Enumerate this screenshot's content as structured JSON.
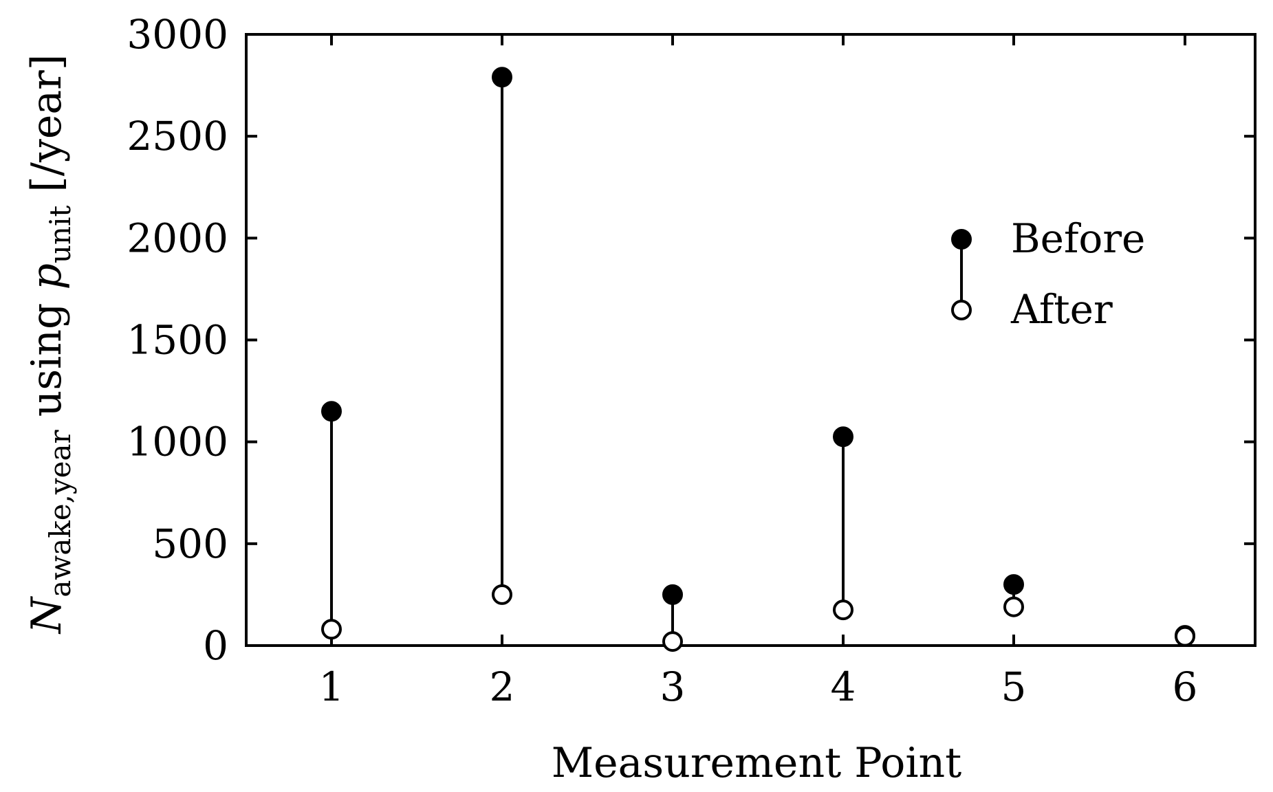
{
  "chart_data": {
    "type": "scatter",
    "title": "",
    "xlabel": "Measurement Point",
    "ylabel": {
      "n": "N",
      "n_sub": "awake,year",
      "using": " using ",
      "p": "p",
      "p_sub": "unit",
      "unit": " [/year]"
    },
    "categories": [
      "1",
      "2",
      "3",
      "4",
      "5",
      "6"
    ],
    "ylim": [
      0,
      3000
    ],
    "yticks": [
      0,
      500,
      1000,
      1500,
      2000,
      2500,
      3000
    ],
    "ytick_labels": [
      "0",
      "500",
      "1000",
      "1500",
      "2000",
      "2500",
      "3000"
    ],
    "grid": false,
    "legend_position": "top-right",
    "series": [
      {
        "name": "Before",
        "marker": "filled-circle",
        "values": [
          1150,
          2790,
          250,
          1025,
          300,
          50
        ]
      },
      {
        "name": "After",
        "marker": "open-circle",
        "values": [
          80,
          250,
          20,
          175,
          190,
          45
        ]
      }
    ],
    "colors": {
      "stroke": "#000000",
      "background": "#ffffff"
    }
  }
}
